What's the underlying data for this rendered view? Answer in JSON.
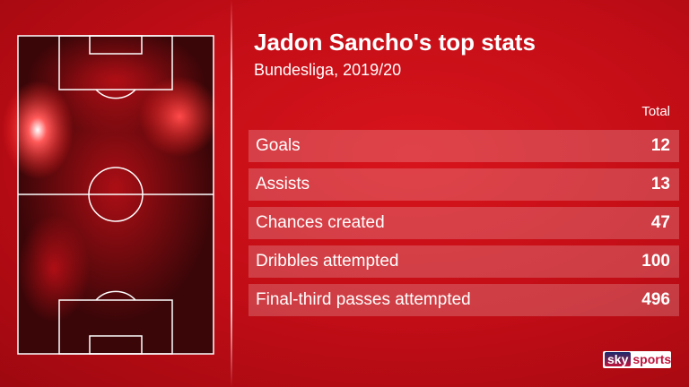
{
  "title": "Jadon Sancho's top stats",
  "subtitle": "Bundesliga, 2019/20",
  "column_header": "Total",
  "rows": [
    {
      "label": "Goals",
      "value": 12
    },
    {
      "label": "Assists",
      "value": 13
    },
    {
      "label": "Chances created",
      "value": 47
    },
    {
      "label": "Dribbles attempted",
      "value": 100
    },
    {
      "label": "Final-third passes attempted",
      "value": 496
    }
  ],
  "logo": {
    "brand": "sky",
    "product": "sports"
  }
}
